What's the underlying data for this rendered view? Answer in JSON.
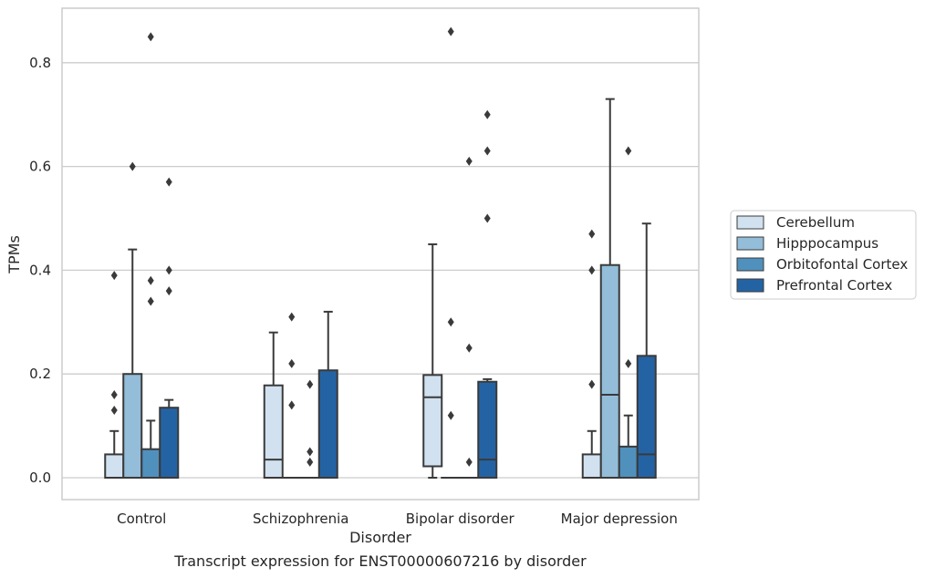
{
  "chart_data": {
    "type": "box",
    "xlabel": "Disorder",
    "ylabel": "TPMs",
    "caption": "Transcript expression for ENST00000607216 by disorder",
    "ylim": [
      -0.042,
      0.905
    ],
    "yticks": [
      "0.0",
      "0.2",
      "0.4",
      "0.6",
      "0.8"
    ],
    "ytick_values": [
      0.0,
      0.2,
      0.4,
      0.6,
      0.8
    ],
    "grid": "horizontal",
    "legend_position": "right",
    "categories": [
      "Control",
      "Schizophrenia",
      "Bipolar disorder",
      "Major depression"
    ],
    "series": [
      {
        "name": "Cerebellum",
        "color": "#d1e1f0",
        "boxes": [
          {
            "whisker_low": 0.0,
            "q1": 0.0,
            "median": 0.0,
            "q3": 0.045,
            "whisker_high": 0.09,
            "outliers": [
              0.13,
              0.16,
              0.39
            ]
          },
          {
            "whisker_low": 0.0,
            "q1": 0.0,
            "median": 0.035,
            "q3": 0.178,
            "whisker_high": 0.28,
            "outliers": []
          },
          {
            "whisker_low": 0.0,
            "q1": 0.022,
            "median": 0.155,
            "q3": 0.198,
            "whisker_high": 0.45,
            "outliers": []
          },
          {
            "whisker_low": 0.0,
            "q1": 0.0,
            "median": 0.0,
            "q3": 0.045,
            "whisker_high": 0.09,
            "outliers": [
              0.18,
              0.4,
              0.47
            ]
          }
        ]
      },
      {
        "name": "Hipppocampus",
        "color": "#93bdd9",
        "boxes": [
          {
            "whisker_low": 0.0,
            "q1": 0.0,
            "median": 0.0,
            "q3": 0.2,
            "whisker_high": 0.44,
            "outliers": [
              0.6
            ]
          },
          {
            "whisker_low": 0.0,
            "q1": 0.0,
            "median": 0.0,
            "q3": 0.0,
            "whisker_high": 0.0,
            "outliers": [
              0.14,
              0.22,
              0.31
            ]
          },
          {
            "whisker_low": 0.0,
            "q1": 0.0,
            "median": 0.0,
            "q3": 0.0,
            "whisker_high": 0.0,
            "outliers": [
              0.12,
              0.3,
              0.86
            ]
          },
          {
            "whisker_low": 0.0,
            "q1": 0.0,
            "median": 0.16,
            "q3": 0.41,
            "whisker_high": 0.73,
            "outliers": []
          }
        ]
      },
      {
        "name": "Orbitofontal Cortex",
        "color": "#5090bd",
        "boxes": [
          {
            "whisker_low": 0.0,
            "q1": 0.0,
            "median": 0.0,
            "q3": 0.055,
            "whisker_high": 0.11,
            "outliers": [
              0.34,
              0.38,
              0.85
            ]
          },
          {
            "whisker_low": 0.0,
            "q1": 0.0,
            "median": 0.0,
            "q3": 0.0,
            "whisker_high": 0.0,
            "outliers": [
              0.03,
              0.05,
              0.18
            ]
          },
          {
            "whisker_low": 0.0,
            "q1": 0.0,
            "median": 0.0,
            "q3": 0.0,
            "whisker_high": 0.0,
            "outliers": [
              0.03,
              0.25,
              0.61
            ]
          },
          {
            "whisker_low": 0.0,
            "q1": 0.0,
            "median": 0.0,
            "q3": 0.06,
            "whisker_high": 0.12,
            "outliers": [
              0.22,
              0.63
            ]
          }
        ]
      },
      {
        "name": "Prefrontal Cortex",
        "color": "#2463a3",
        "boxes": [
          {
            "whisker_low": 0.0,
            "q1": 0.0,
            "median": 0.0,
            "q3": 0.135,
            "whisker_high": 0.15,
            "outliers": [
              0.36,
              0.4,
              0.57
            ]
          },
          {
            "whisker_low": 0.0,
            "q1": 0.0,
            "median": 0.0,
            "q3": 0.207,
            "whisker_high": 0.32,
            "outliers": []
          },
          {
            "whisker_low": 0.0,
            "q1": 0.0,
            "median": 0.035,
            "q3": 0.185,
            "whisker_high": 0.19,
            "outliers": [
              0.5,
              0.63,
              0.7
            ]
          },
          {
            "whisker_low": 0.0,
            "q1": 0.0,
            "median": 0.045,
            "q3": 0.235,
            "whisker_high": 0.49,
            "outliers": []
          }
        ]
      }
    ]
  }
}
